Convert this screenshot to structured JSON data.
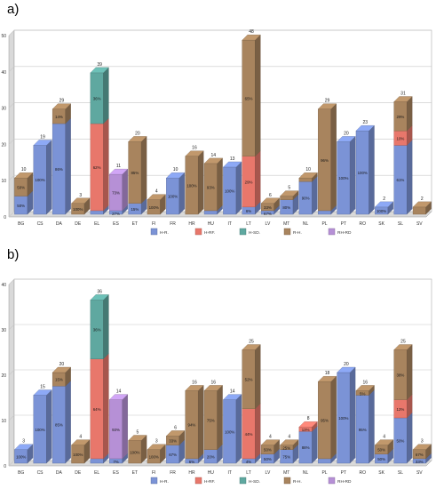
{
  "panel_a_letter": "a)",
  "panel_b_letter": "b)",
  "legend_labels": [
    "H-R.",
    "H-RF.",
    "H-SD.",
    "R-H.",
    "RH-RD"
  ],
  "colors": {
    "H-R.": "#7b93d6",
    "H-RF.": "#e8776b",
    "H-SD.": "#5fa8a0",
    "R-H.": "#a8845e",
    "RH-RD": "#b690d6",
    "wall": "#d9d9d9",
    "grid": "#c8c8c8"
  },
  "chart_data": [
    {
      "type": "bar",
      "stacked": true,
      "panel": "a)",
      "categories": [
        "BG",
        "CS",
        "DA",
        "DE",
        "EL",
        "ES",
        "ET",
        "FI",
        "FR",
        "HR",
        "HU",
        "IT",
        "LT",
        "LV",
        "MT",
        "NL",
        "PL",
        "PT",
        "RO",
        "SK",
        "SL",
        "SV"
      ],
      "ylim": [
        0,
        50
      ],
      "yticks": [
        0,
        10,
        20,
        30,
        40,
        50
      ],
      "grid": true,
      "legend": "bottom",
      "series": [
        {
          "name": "H-R.",
          "values": [
            5,
            19,
            25,
            0,
            1,
            1,
            3,
            0,
            10,
            0,
            1,
            13,
            2,
            1,
            4,
            9,
            1,
            20,
            23,
            2,
            19,
            0
          ]
        },
        {
          "name": "H-RF.",
          "values": [
            0,
            0,
            0,
            0,
            24,
            0,
            0,
            0,
            0,
            0,
            0,
            0,
            14,
            0,
            0,
            0,
            0,
            0,
            0,
            0,
            4,
            0
          ]
        },
        {
          "name": "H-SD.",
          "values": [
            0,
            0,
            0,
            0,
            14,
            0,
            0,
            0,
            0,
            0,
            0,
            0,
            0,
            0,
            0,
            0,
            0,
            0,
            0,
            0,
            0,
            0
          ]
        },
        {
          "name": "R-H.",
          "values": [
            5,
            0,
            4,
            3,
            0,
            0,
            17,
            4,
            0,
            16,
            13,
            0,
            32,
            2,
            1,
            1,
            28,
            0,
            0,
            0,
            8,
            2
          ]
        },
        {
          "name": "RH-RD",
          "values": [
            0,
            0,
            0,
            0,
            0,
            10,
            0,
            0,
            0,
            0,
            0,
            0,
            0,
            0,
            0,
            0,
            0,
            0,
            0,
            0,
            0,
            0
          ]
        }
      ],
      "totals": [
        "10",
        "19",
        "29",
        "3",
        "39",
        "11",
        "20",
        "4",
        "10",
        "16",
        "14",
        "13",
        "48",
        "6",
        "5",
        "10",
        "29",
        "20",
        "23",
        "2",
        "31",
        "2"
      ],
      "segment_labels": [
        {
          "cat": "BG",
          "series": "H-R.",
          "text": "50%"
        },
        {
          "cat": "BG",
          "series": "R-H.",
          "text": "50%"
        },
        {
          "cat": "CS",
          "series": "H-R.",
          "text": "100%"
        },
        {
          "cat": "DA",
          "series": "H-R.",
          "text": "86%"
        },
        {
          "cat": "DA",
          "series": "R-H.",
          "text": "14%"
        },
        {
          "cat": "DE",
          "series": "R-H.",
          "text": "100%"
        },
        {
          "cat": "EL",
          "series": "H-RF.",
          "text": "62%"
        },
        {
          "cat": "EL",
          "series": "H-SD.",
          "text": "36%"
        },
        {
          "cat": "ES",
          "series": "H-R.",
          "text": "27%"
        },
        {
          "cat": "ES",
          "series": "RH-RD",
          "text": "73%"
        },
        {
          "cat": "ET",
          "series": "H-R.",
          "text": "15%"
        },
        {
          "cat": "ET",
          "series": "R-H.",
          "text": "85%"
        },
        {
          "cat": "FI",
          "series": "R-H.",
          "text": "100%"
        },
        {
          "cat": "FR",
          "series": "H-R.",
          "text": "100%"
        },
        {
          "cat": "HR",
          "series": "R-H.",
          "text": "100%"
        },
        {
          "cat": "HU",
          "series": "R-H.",
          "text": "93%"
        },
        {
          "cat": "IT",
          "series": "H-R.",
          "text": "100%"
        },
        {
          "cat": "LT",
          "series": "H-R.",
          "text": "6%"
        },
        {
          "cat": "LT",
          "series": "H-RF.",
          "text": "29%"
        },
        {
          "cat": "LT",
          "series": "R-H.",
          "text": "65%"
        },
        {
          "cat": "LV",
          "series": "H-R.",
          "text": "67%"
        },
        {
          "cat": "LV",
          "series": "R-H.",
          "text": "33%"
        },
        {
          "cat": "MT",
          "series": "H-R.",
          "text": "80%"
        },
        {
          "cat": "NL",
          "series": "H-R.",
          "text": "90%"
        },
        {
          "cat": "PL",
          "series": "R-H.",
          "text": "96%"
        },
        {
          "cat": "PT",
          "series": "H-R.",
          "text": "100%"
        },
        {
          "cat": "RO",
          "series": "H-R.",
          "text": "100%"
        },
        {
          "cat": "SK",
          "series": "H-R.",
          "text": "100%"
        },
        {
          "cat": "SL",
          "series": "H-R.",
          "text": "61%"
        },
        {
          "cat": "SL",
          "series": "H-RF.",
          "text": "10%"
        },
        {
          "cat": "SL",
          "series": "R-H.",
          "text": "29%"
        }
      ]
    },
    {
      "type": "bar",
      "stacked": true,
      "panel": "b)",
      "categories": [
        "BG",
        "CS",
        "DA",
        "DE",
        "EL",
        "ES",
        "ET",
        "FI",
        "FR",
        "HR",
        "HU",
        "IT",
        "LT",
        "LV",
        "MT",
        "NL",
        "PL",
        "PT",
        "RO",
        "SK",
        "SL",
        "SV"
      ],
      "ylim": [
        0,
        40
      ],
      "yticks": [
        0,
        10,
        20,
        30,
        40
      ],
      "grid": true,
      "legend": "bottom",
      "series": [
        {
          "name": "H-R.",
          "values": [
            3,
            15,
            17,
            0,
            1,
            1,
            0,
            0,
            4,
            1,
            3,
            14,
            1,
            2,
            3,
            7,
            1,
            20,
            15,
            2,
            10,
            1
          ]
        },
        {
          "name": "H-RF.",
          "values": [
            0,
            0,
            0,
            0,
            22,
            0,
            0,
            0,
            0,
            0,
            0,
            0,
            11,
            0,
            0,
            1,
            0,
            0,
            0,
            0,
            4,
            0
          ]
        },
        {
          "name": "H-SD.",
          "values": [
            0,
            0,
            0,
            0,
            13,
            0,
            0,
            0,
            0,
            0,
            0,
            0,
            0,
            0,
            0,
            0,
            0,
            0,
            0,
            0,
            0,
            0
          ]
        },
        {
          "name": "R-H.",
          "values": [
            0,
            0,
            3,
            4,
            0,
            0,
            5,
            3,
            2,
            15,
            13,
            0,
            13,
            2,
            1,
            0,
            17,
            0,
            1,
            2,
            11,
            2
          ]
        },
        {
          "name": "RH-RD",
          "values": [
            0,
            0,
            0,
            0,
            0,
            13,
            0,
            0,
            0,
            0,
            0,
            0,
            0,
            0,
            0,
            0,
            0,
            0,
            0,
            0,
            0,
            0
          ]
        }
      ],
      "totals": [
        "3",
        "15",
        "20",
        "4",
        "36",
        "14",
        "5",
        "3",
        "6",
        "16",
        "16",
        "14",
        "25",
        "4",
        "4",
        "8",
        "18",
        "20",
        "16",
        "4",
        "25",
        "3"
      ],
      "segment_labels": [
        {
          "cat": "BG",
          "series": "H-R.",
          "text": "100%"
        },
        {
          "cat": "CS",
          "series": "H-R.",
          "text": "100%"
        },
        {
          "cat": "DA",
          "series": "H-R.",
          "text": "85%"
        },
        {
          "cat": "DA",
          "series": "R-H.",
          "text": "15%"
        },
        {
          "cat": "DE",
          "series": "R-H.",
          "text": "100%"
        },
        {
          "cat": "EL",
          "series": "H-RF.",
          "text": "64%"
        },
        {
          "cat": "EL",
          "series": "H-SD.",
          "text": "36%"
        },
        {
          "cat": "ES",
          "series": "H-R.",
          "text": "7%"
        },
        {
          "cat": "ES",
          "series": "RH-RD",
          "text": "93%"
        },
        {
          "cat": "ET",
          "series": "R-H.",
          "text": "100%"
        },
        {
          "cat": "FI",
          "series": "R-H.",
          "text": "100%"
        },
        {
          "cat": "FR",
          "series": "H-R.",
          "text": "67%"
        },
        {
          "cat": "FR",
          "series": "R-H.",
          "text": "33%"
        },
        {
          "cat": "HR",
          "series": "H-R.",
          "text": "6%"
        },
        {
          "cat": "HR",
          "series": "R-H.",
          "text": "94%"
        },
        {
          "cat": "HU",
          "series": "H-R.",
          "text": "20%"
        },
        {
          "cat": "HU",
          "series": "R-H.",
          "text": "75%"
        },
        {
          "cat": "IT",
          "series": "H-R.",
          "text": "100%"
        },
        {
          "cat": "LT",
          "series": "H-R.",
          "text": "4%"
        },
        {
          "cat": "LT",
          "series": "H-RF.",
          "text": "44%"
        },
        {
          "cat": "LT",
          "series": "R-H.",
          "text": "52%"
        },
        {
          "cat": "LV",
          "series": "H-R.",
          "text": "50%"
        },
        {
          "cat": "LV",
          "series": "R-H.",
          "text": "50%"
        },
        {
          "cat": "MT",
          "series": "H-R.",
          "text": "75%"
        },
        {
          "cat": "MT",
          "series": "R-H.",
          "text": "25%"
        },
        {
          "cat": "NL",
          "series": "H-R.",
          "text": "88%"
        },
        {
          "cat": "NL",
          "series": "H-RF.",
          "text": "13%"
        },
        {
          "cat": "PL",
          "series": "R-H.",
          "text": "95%"
        },
        {
          "cat": "PT",
          "series": "H-R.",
          "text": "100%"
        },
        {
          "cat": "RO",
          "series": "H-R.",
          "text": "95%"
        },
        {
          "cat": "RO",
          "series": "R-H.",
          "text": "5%"
        },
        {
          "cat": "SK",
          "series": "H-R.",
          "text": "50%"
        },
        {
          "cat": "SK",
          "series": "R-H.",
          "text": "50%"
        },
        {
          "cat": "SL",
          "series": "H-R.",
          "text": "50%"
        },
        {
          "cat": "SL",
          "series": "H-RF.",
          "text": "12%"
        },
        {
          "cat": "SL",
          "series": "R-H.",
          "text": "38%"
        },
        {
          "cat": "SV",
          "series": "H-R.",
          "text": "33%"
        },
        {
          "cat": "SV",
          "series": "R-H.",
          "text": "67%"
        }
      ]
    }
  ]
}
